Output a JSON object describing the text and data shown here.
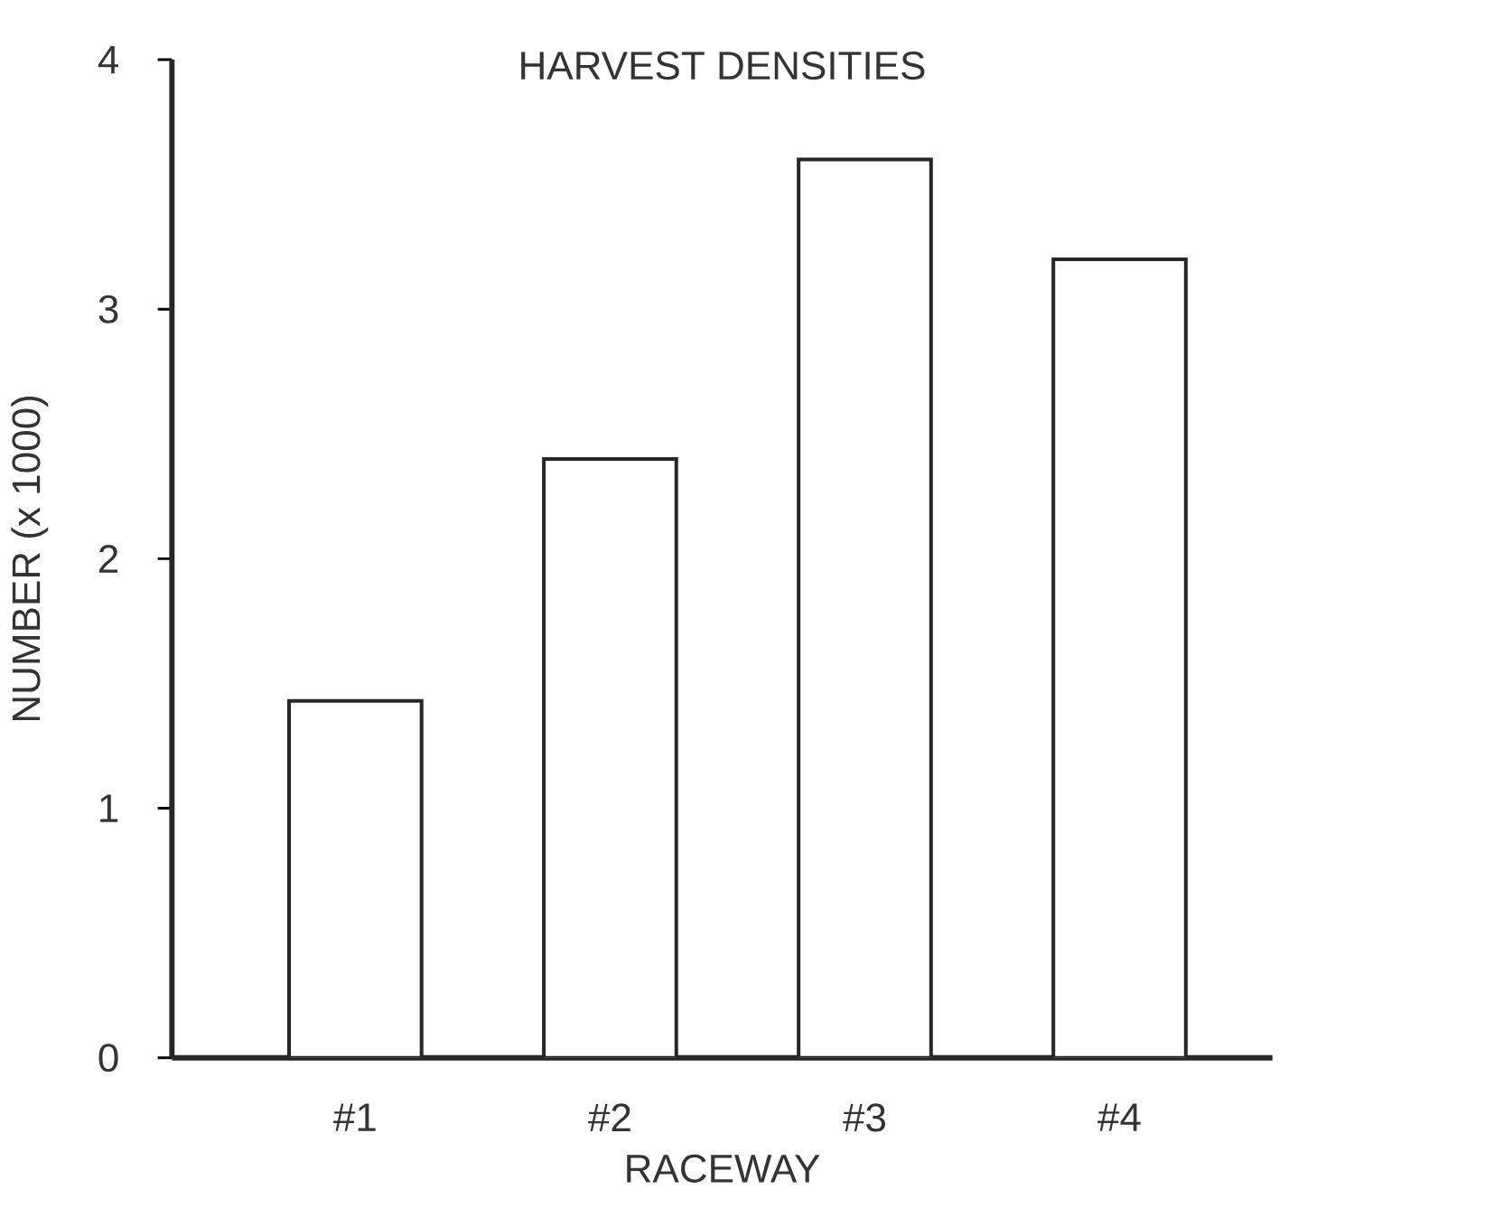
{
  "chart_data": {
    "type": "bar",
    "title": "HARVEST DENSITIES",
    "xlabel": "RACEWAY",
    "ylabel": "NUMBER (x 1000)",
    "categories": [
      "#1",
      "#2",
      "#3",
      "#4"
    ],
    "values": [
      1.43,
      2.4,
      3.6,
      3.2
    ],
    "color": "#ffffff",
    "ylim": [
      0,
      4
    ],
    "yticks": [
      0,
      1,
      2,
      3,
      4
    ]
  }
}
